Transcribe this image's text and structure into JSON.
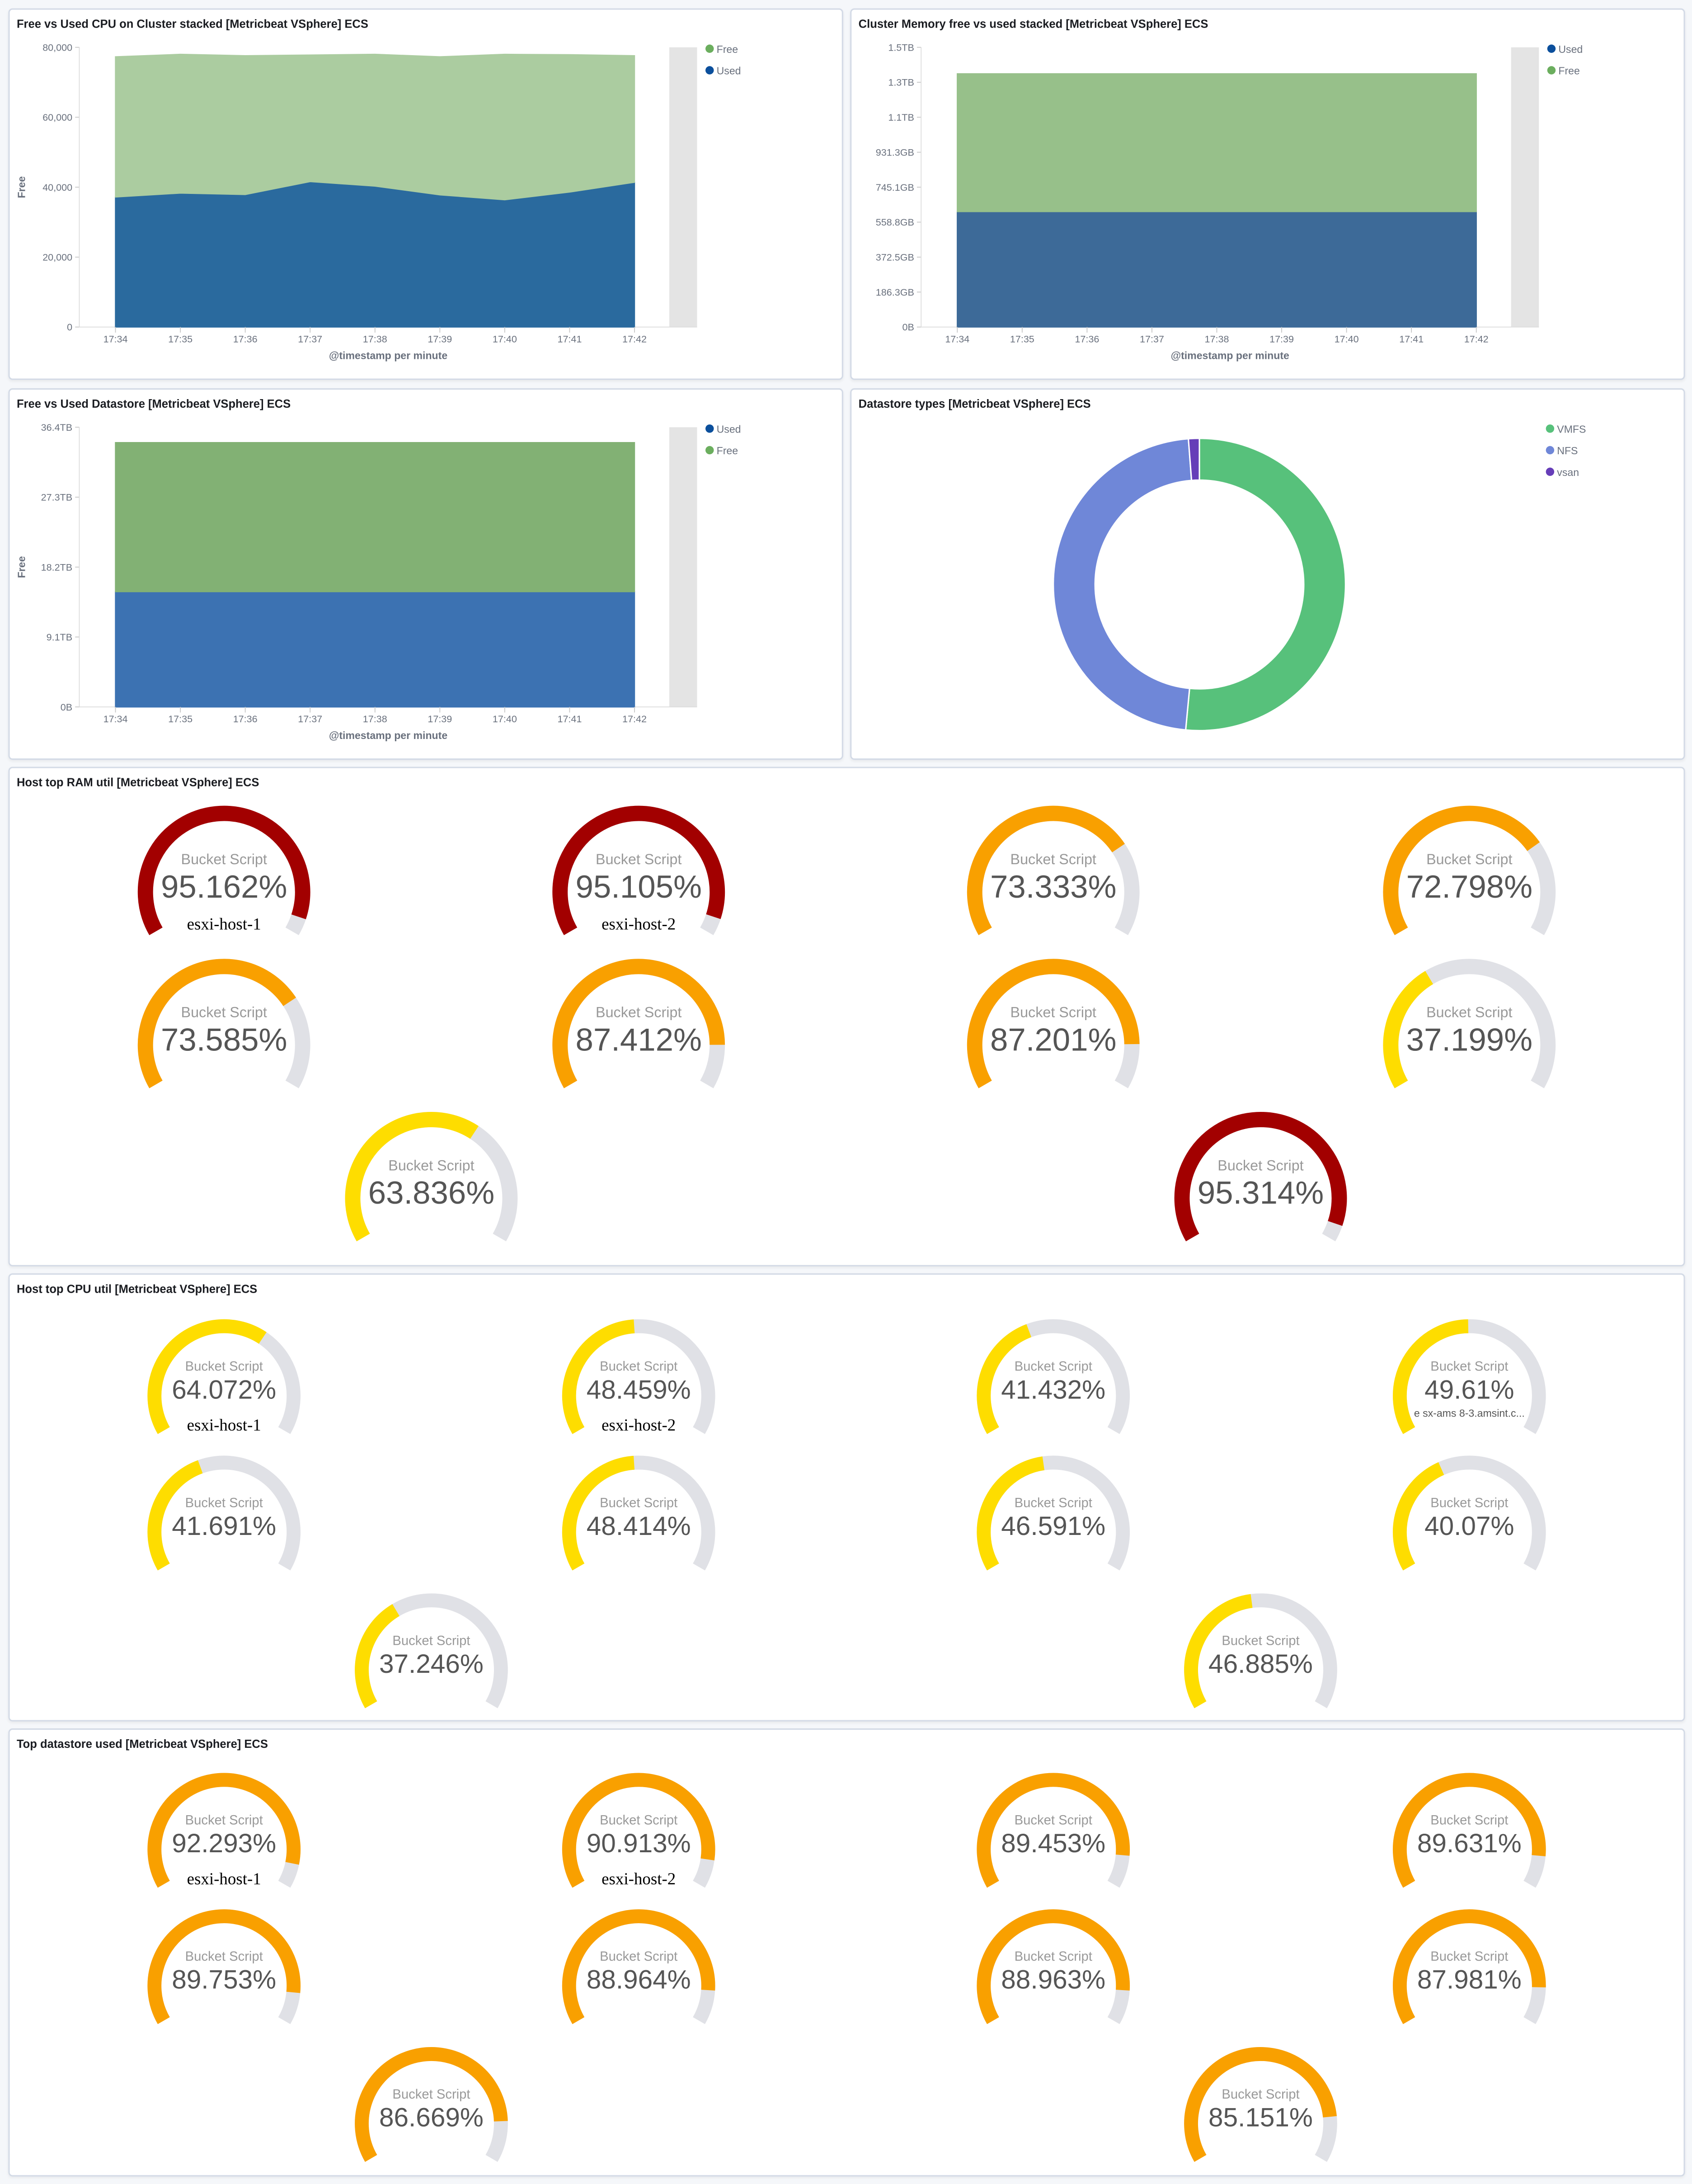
{
  "colors": {
    "free_cpu": "#abcca0",
    "used_cpu": "#2a6a9e",
    "free_mem": "#97c08a",
    "used_mem": "#3d6a98",
    "free_ds": "#82b174",
    "used_ds": "#3c72b2",
    "vmfs": "#57c17b",
    "nfs": "#6f87d8",
    "vsan": "#663db8",
    "red": "#a20000",
    "orange": "#f9a000",
    "yellow": "#fedd00",
    "track": "#e0e1e6",
    "legend_used": "#0b4f9c",
    "legend_free": "#6bae5e"
  },
  "panels": {
    "cpu": {
      "title": "Free vs Used CPU on Cluster stacked [Metricbeat VSphere] ECS"
    },
    "memory": {
      "title": "Cluster Memory free vs used stacked [Metricbeat VSphere] ECS"
    },
    "datastore": {
      "title": "Free vs Used Datastore [Metricbeat VSphere] ECS"
    },
    "dstypes": {
      "title": "Datastore types [Metricbeat VSphere] ECS"
    },
    "ram": {
      "title": "Host top RAM util [Metricbeat VSphere] ECS"
    },
    "hostcpu": {
      "title": "Host top CPU util [Metricbeat VSphere] ECS"
    },
    "dsused": {
      "title": "Top datastore used [Metricbeat VSphere] ECS"
    }
  },
  "chart_data": [
    {
      "id": "cpu",
      "type": "area",
      "stacked": true,
      "xlabel": "@timestamp per minute",
      "ylabel": "Free",
      "x": [
        "17:34",
        "17:35",
        "17:36",
        "17:37",
        "17:38",
        "17:39",
        "17:40",
        "17:41",
        "17:42"
      ],
      "yticks": [
        "0",
        "20,000",
        "40,000",
        "60,000",
        "80,000"
      ],
      "ylim": [
        0,
        80000
      ],
      "legend": "right",
      "series": [
        {
          "name": "Used",
          "values": [
            37200,
            38300,
            37900,
            41600,
            40300,
            37800,
            36400,
            38600,
            41400
          ]
        },
        {
          "name": "Free",
          "values": [
            40100,
            39700,
            39700,
            36200,
            37700,
            39500,
            41600,
            39300,
            36200
          ]
        }
      ],
      "legend_order": [
        "Free",
        "Used"
      ]
    },
    {
      "id": "memory",
      "type": "area",
      "stacked": true,
      "xlabel": "@timestamp per minute",
      "ylabel": "",
      "x": [
        "17:34",
        "17:35",
        "17:36",
        "17:37",
        "17:38",
        "17:39",
        "17:40",
        "17:41",
        "17:42"
      ],
      "yticks": [
        "0B",
        "186.3GB",
        "372.5GB",
        "558.8GB",
        "745.1GB",
        "931.3GB",
        "1.1TB",
        "1.3TB",
        "1.5TB"
      ],
      "ylim": [
        0,
        1490
      ],
      "legend": "right",
      "series": [
        {
          "name": "Used",
          "values": [
            615,
            615,
            615,
            615,
            615,
            615,
            615,
            615,
            615
          ]
        },
        {
          "name": "Free",
          "values": [
            734,
            734,
            734,
            734,
            734,
            734,
            734,
            734,
            734
          ]
        }
      ],
      "legend_order": [
        "Used",
        "Free"
      ]
    },
    {
      "id": "datastore",
      "type": "area",
      "stacked": true,
      "xlabel": "@timestamp per minute",
      "ylabel": "Free",
      "x": [
        "17:34",
        "17:35",
        "17:36",
        "17:37",
        "17:38",
        "17:39",
        "17:40",
        "17:41",
        "17:42"
      ],
      "yticks": [
        "0B",
        "9.1TB",
        "18.2TB",
        "27.3TB",
        "36.4TB"
      ],
      "ylim": [
        0,
        36.4
      ],
      "legend": "right",
      "series": [
        {
          "name": "Used",
          "values": [
            15.0,
            15.0,
            15.0,
            15.0,
            15.0,
            15.0,
            15.0,
            15.0,
            15.0
          ]
        },
        {
          "name": "Free",
          "values": [
            19.4,
            19.4,
            19.4,
            19.4,
            19.4,
            19.4,
            19.4,
            19.4,
            19.4
          ]
        }
      ],
      "legend_order": [
        "Used",
        "Free"
      ]
    },
    {
      "id": "dstypes",
      "type": "pie",
      "donut": true,
      "legend": "right",
      "slices": [
        {
          "name": "VMFS",
          "value": 51.5
        },
        {
          "name": "NFS",
          "value": 47.3
        },
        {
          "name": "vsan",
          "value": 1.2
        }
      ]
    }
  ],
  "gauges": {
    "ram": [
      {
        "metric": "Bucket Script",
        "value": "95.162%",
        "pct": 95.162,
        "color": "red",
        "label": "esxi-host-1"
      },
      {
        "metric": "Bucket Script",
        "value": "95.105%",
        "pct": 95.105,
        "color": "red",
        "label": "esxi-host-2"
      },
      {
        "metric": "Bucket Script",
        "value": "73.333%",
        "pct": 73.333,
        "color": "orange"
      },
      {
        "metric": "Bucket Script",
        "value": "72.798%",
        "pct": 72.798,
        "color": "orange"
      },
      {
        "metric": "Bucket Script",
        "value": "73.585%",
        "pct": 73.585,
        "color": "orange"
      },
      {
        "metric": "Bucket Script",
        "value": "87.412%",
        "pct": 87.412,
        "color": "orange"
      },
      {
        "metric": "Bucket Script",
        "value": "87.201%",
        "pct": 87.201,
        "color": "orange"
      },
      {
        "metric": "Bucket Script",
        "value": "37.199%",
        "pct": 37.199,
        "color": "yellow"
      },
      {
        "metric": "Bucket Script",
        "value": "63.836%",
        "pct": 63.836,
        "color": "yellow"
      },
      {
        "metric": "Bucket Script",
        "value": "95.314%",
        "pct": 95.314,
        "color": "red"
      }
    ],
    "hostcpu": [
      {
        "metric": "Bucket Script",
        "value": "64.072%",
        "pct": 64.072,
        "color": "yellow",
        "label": "esxi-host-1"
      },
      {
        "metric": "Bucket Script",
        "value": "48.459%",
        "pct": 48.459,
        "color": "yellow",
        "label": "esxi-host-2"
      },
      {
        "metric": "Bucket Script",
        "value": "41.432%",
        "pct": 41.432,
        "color": "yellow"
      },
      {
        "metric": "Bucket Script",
        "value": "49.61%",
        "pct": 49.61,
        "color": "yellow",
        "sublabel": "e sx-ams 8-3.amsint.c..."
      },
      {
        "metric": "Bucket Script",
        "value": "41.691%",
        "pct": 41.691,
        "color": "yellow"
      },
      {
        "metric": "Bucket Script",
        "value": "48.414%",
        "pct": 48.414,
        "color": "yellow"
      },
      {
        "metric": "Bucket Script",
        "value": "46.591%",
        "pct": 46.591,
        "color": "yellow"
      },
      {
        "metric": "Bucket Script",
        "value": "40.07%",
        "pct": 40.07,
        "color": "yellow"
      },
      {
        "metric": "Bucket Script",
        "value": "37.246%",
        "pct": 37.246,
        "color": "yellow"
      },
      {
        "metric": "Bucket Script",
        "value": "46.885%",
        "pct": 46.885,
        "color": "yellow"
      }
    ],
    "dsused": [
      {
        "metric": "Bucket Script",
        "value": "92.293%",
        "pct": 92.293,
        "color": "orange",
        "label": "esxi-host-1"
      },
      {
        "metric": "Bucket Script",
        "value": "90.913%",
        "pct": 90.913,
        "color": "orange",
        "label": "esxi-host-2"
      },
      {
        "metric": "Bucket Script",
        "value": "89.453%",
        "pct": 89.453,
        "color": "orange"
      },
      {
        "metric": "Bucket Script",
        "value": "89.631%",
        "pct": 89.631,
        "color": "orange"
      },
      {
        "metric": "Bucket Script",
        "value": "89.753%",
        "pct": 89.753,
        "color": "orange"
      },
      {
        "metric": "Bucket Script",
        "value": "88.964%",
        "pct": 88.964,
        "color": "orange"
      },
      {
        "metric": "Bucket Script",
        "value": "88.963%",
        "pct": 88.963,
        "color": "orange"
      },
      {
        "metric": "Bucket Script",
        "value": "87.981%",
        "pct": 87.981,
        "color": "orange"
      },
      {
        "metric": "Bucket Script",
        "value": "86.669%",
        "pct": 86.669,
        "color": "orange"
      },
      {
        "metric": "Bucket Script",
        "value": "85.151%",
        "pct": 85.151,
        "color": "orange"
      }
    ]
  }
}
